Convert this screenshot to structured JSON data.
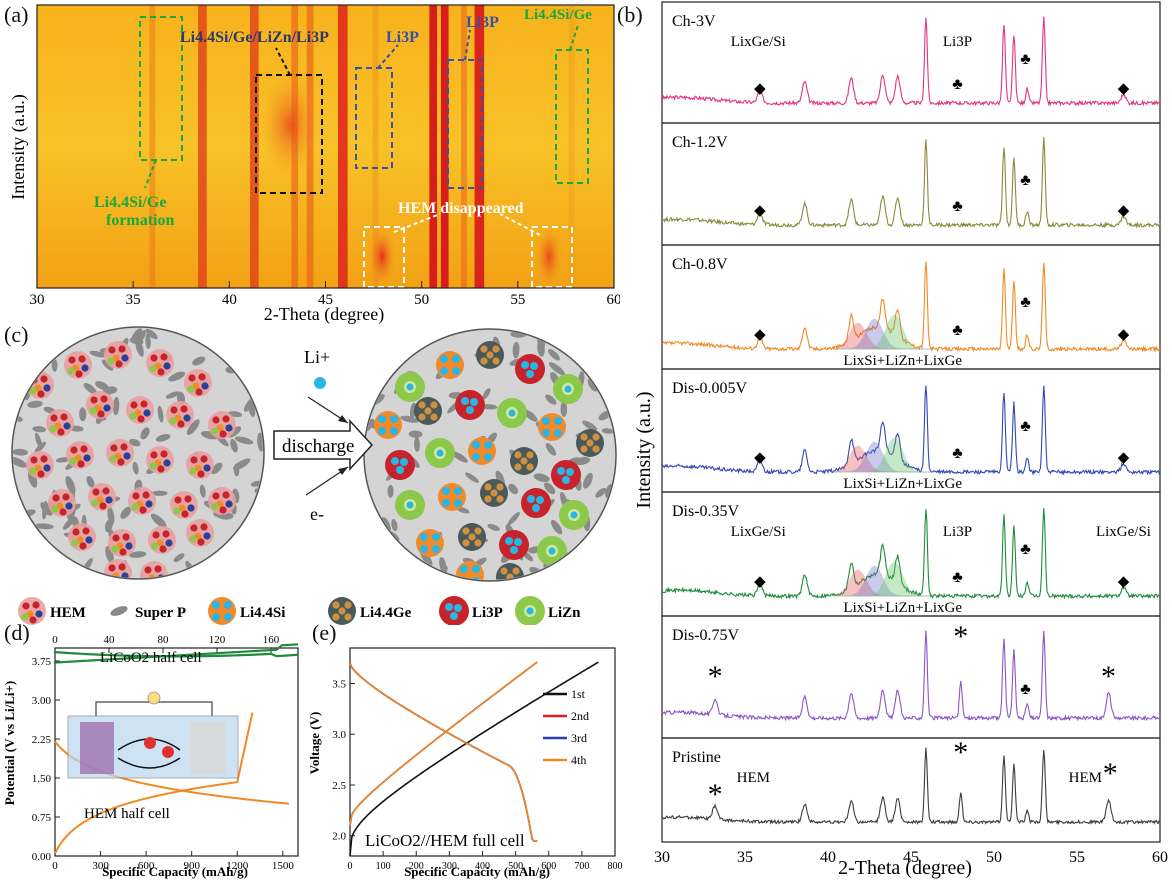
{
  "panels": {
    "a": {
      "label": "(a)"
    },
    "b": {
      "label": "(b)"
    },
    "c": {
      "label": "(c)"
    },
    "d": {
      "label": "(d)"
    },
    "e": {
      "label": "(e)"
    }
  },
  "panel_a": {
    "xlabel": "2-Theta (degree)",
    "ylabel": "Intensity (a.u.)",
    "xticks": [
      "30",
      "35",
      "40",
      "45",
      "50",
      "55",
      "60"
    ],
    "ann_li44_top": "Li4.4Si/Ge",
    "ann_mix": "Li4.4Si/Ge/LiZn/Li3P",
    "ann_li3p_1": "Li3P",
    "ann_li3p_2": "Li3P",
    "ann_formation_1": "Li4.4Si/Ge",
    "ann_formation_2": "formation",
    "ann_hem": "HEM disappeared",
    "colors": {
      "green": "#19a83c",
      "blue": "#3b4fa8",
      "black": "#111111",
      "white": "#ffffff"
    }
  },
  "chart_data": [
    {
      "type": "line",
      "panel": "b",
      "xlabel": "2-Theta (degree)",
      "ylabel": "Intensity (a.u.)",
      "xlim": [
        30,
        60
      ],
      "xticks": [
        "30",
        "35",
        "40",
        "45",
        "50",
        "55",
        "60"
      ],
      "series": [
        {
          "name": "Ch-3V",
          "color": "#e2347f",
          "ann": [
            {
              "t": "LixGe/Si",
              "x": 35.8
            },
            {
              "t": "Li3P",
              "x": 47.8
            }
          ]
        },
        {
          "name": "Ch-1.2V",
          "color": "#8a8a3c",
          "ann": []
        },
        {
          "name": "Ch-0.8V",
          "color": "#f08a24",
          "ann": [
            {
              "t": "LixSi+LiZn+LixGe",
              "x": 44.5
            }
          ]
        },
        {
          "name": "Dis-0.005V",
          "color": "#3446b8",
          "ann": [
            {
              "t": "LixSi+LiZn+LixGe",
              "x": 44.5
            }
          ]
        },
        {
          "name": "Dis-0.35V",
          "color": "#1f8a3c",
          "ann": [
            {
              "t": "LixGe/Si",
              "x": 35.8
            },
            {
              "t": "Li3P",
              "x": 47.8
            },
            {
              "t": "LixGe/Si",
              "x": 57.8
            },
            {
              "t": "LixSi+LiZn+LixGe",
              "x": 44.5
            }
          ]
        },
        {
          "name": "Dis-0.75V",
          "color": "#8a55c8",
          "ann": []
        },
        {
          "name": "Pristine",
          "color": "#3c3c3c",
          "ann": [
            {
              "t": "HEM",
              "x": 35.5
            },
            {
              "t": "HEM",
              "x": 55.5
            }
          ]
        }
      ]
    },
    {
      "type": "line",
      "panel": "d",
      "xlabel": "Specific Capacity (mAh/g)",
      "ylabel": "Potential (V vs Li/Li+)",
      "xlim_bottom": [
        0,
        1600
      ],
      "xticks_bottom": [
        "0",
        "300",
        "600",
        "900",
        "1200",
        "1500"
      ],
      "xlim_top": [
        0,
        180
      ],
      "xticks_top": [
        "0",
        "40",
        "80",
        "120",
        "160"
      ],
      "ylim": [
        0,
        4.0
      ],
      "yticks": [
        "0.00",
        "0.75",
        "1.50",
        "2.25",
        "3.00",
        "3.75"
      ],
      "series": [
        {
          "name": "LiCoO2 half cell",
          "color": "#1f8a3c"
        },
        {
          "name": "HEM half cell",
          "color": "#f08a24"
        }
      ]
    },
    {
      "type": "line",
      "panel": "e",
      "title": "LiCoO2//HEM full cell",
      "xlabel": "Specific Capacity (mAh/g)",
      "ylabel": "Voltage (V)",
      "xlim": [
        0,
        800
      ],
      "xticks": [
        "0",
        "100",
        "200",
        "300",
        "400",
        "500",
        "600",
        "700",
        "800"
      ],
      "ylim": [
        1.8,
        3.85
      ],
      "yticks": [
        "2.0",
        "2.5",
        "3.0",
        "3.5"
      ],
      "series": [
        {
          "name": "1st",
          "color": "#111111",
          "charge_end": 750,
          "discharge_end": 565
        },
        {
          "name": "2nd",
          "color": "#e02020",
          "charge_end": 565,
          "discharge_end": 565
        },
        {
          "name": "3rd",
          "color": "#2a3ab8",
          "charge_end": 565,
          "discharge_end": 565
        },
        {
          "name": "4th",
          "color": "#f08a24",
          "charge_end": 565,
          "discharge_end": 565
        }
      ]
    }
  ],
  "panel_c": {
    "li_plus": "Li+",
    "arrow_label": "discharge",
    "e_minus": "e-",
    "legend": [
      {
        "key": "hem",
        "label": "HEM"
      },
      {
        "key": "superp",
        "label": "Super P"
      },
      {
        "key": "li44si",
        "label": "Li4.4Si"
      },
      {
        "key": "li44ge",
        "label": "Li4.4Ge"
      },
      {
        "key": "li3p",
        "label": "Li3P"
      },
      {
        "key": "lizn",
        "label": "LiZn"
      }
    ],
    "colors": {
      "gray": "#c8c8c8",
      "particle": "#8a8a8a",
      "red": "#c8232a",
      "orange": "#f28a2a",
      "green": "#8cc84a",
      "blue": "#29b6e6",
      "darkblue": "#28409a",
      "gernium": "#4a5a5a"
    }
  }
}
